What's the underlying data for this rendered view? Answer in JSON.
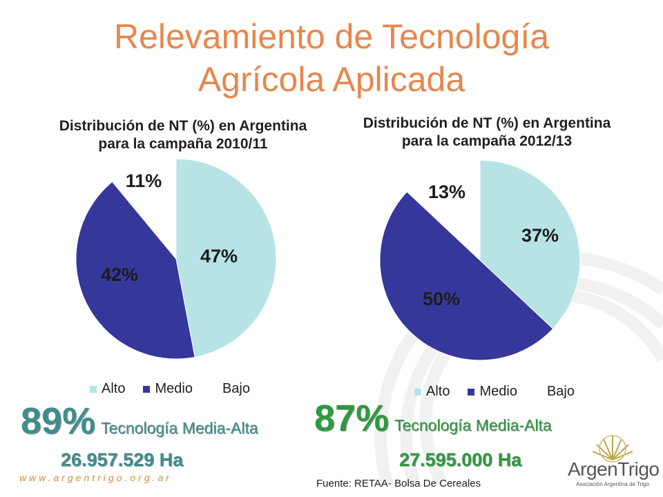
{
  "slide": {
    "title_line1": "Relevamiento de Tecnología",
    "title_line2": "Agrícola Aplicada",
    "url": "www.argentrigo.org.ar",
    "source": "Fuente: RETAA- Bolsa De Cereales",
    "logo_name": "ArgenTrigo",
    "logo_subtitle": "Asociación Argentina de Trigo"
  },
  "colors": {
    "title": "#e8864c",
    "alto": "#b7e3e4",
    "medio": "#35379b",
    "bajo": "#ffffff",
    "left_accent": "#3e8e8d",
    "right_accent": "#2e9a40"
  },
  "chart_data": [
    {
      "type": "pie",
      "title_line1": "Distribución de NT (%) en Argentina",
      "title_line2": "para la campaña 2010/11",
      "categories": [
        "Alto",
        "Medio",
        "Bajo"
      ],
      "values": [
        47,
        42,
        11
      ],
      "labels": [
        "47%",
        "42%",
        "11%"
      ],
      "legend": "bottom",
      "summary_pct": "89%",
      "summary_text": "Tecnología Media-Alta",
      "summary_ha": "26.957.529 Ha"
    },
    {
      "type": "pie",
      "title_line1": "Distribución de NT (%) en Argentina",
      "title_line2": "para la campaña 2012/13",
      "categories": [
        "Alto",
        "Medio",
        "Bajo"
      ],
      "values": [
        37,
        50,
        13
      ],
      "labels": [
        "37%",
        "50%",
        "13%"
      ],
      "legend": "bottom",
      "summary_pct": "87%",
      "summary_text": "Tecnología Media-Alta",
      "summary_ha": "27.595.000 Ha"
    }
  ]
}
